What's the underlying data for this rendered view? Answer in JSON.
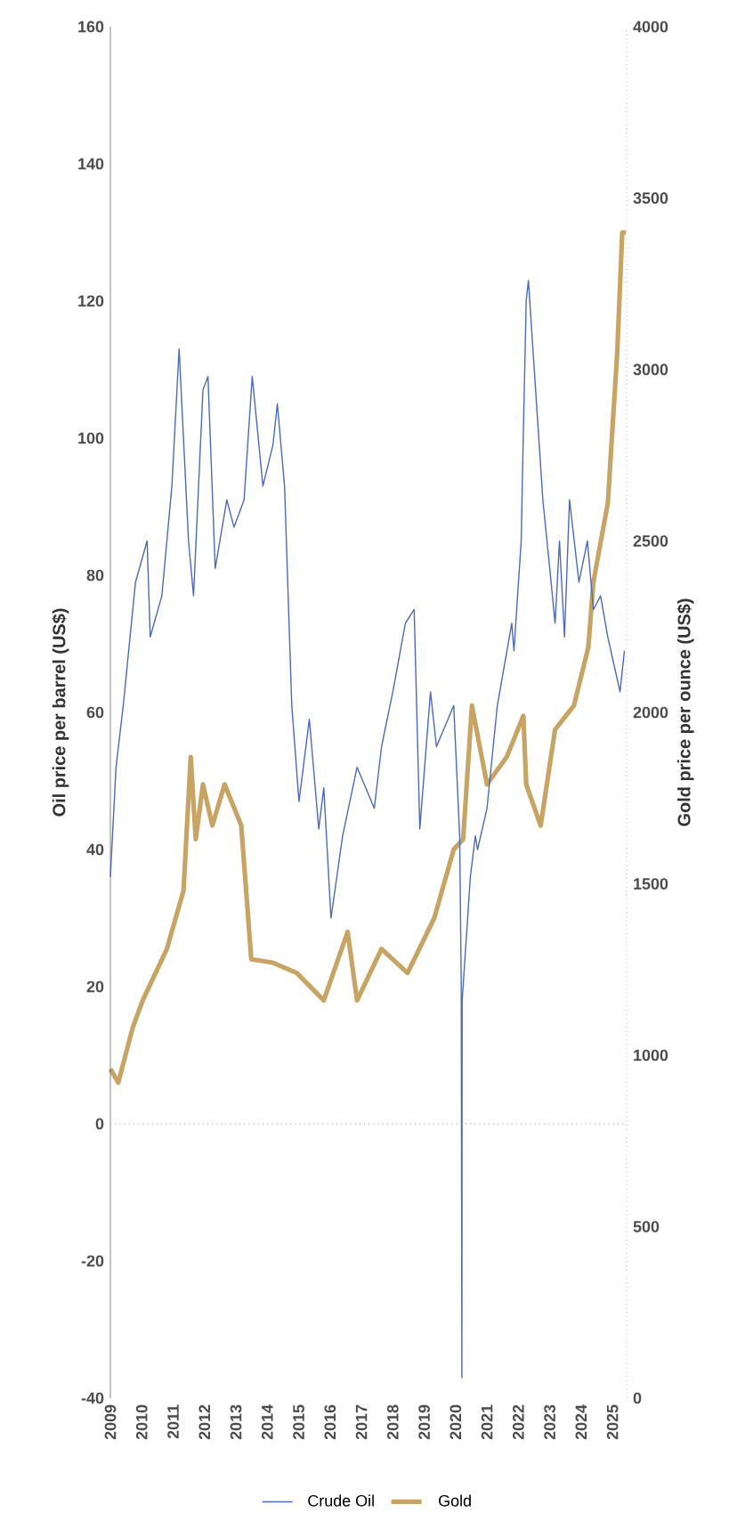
{
  "chart_data": {
    "type": "line",
    "ylabel": "Oil price per barrel (US$)",
    "y2label": "Gold price per ounce (US$)",
    "xlim": [
      2009,
      2025.45
    ],
    "xticks": [
      2009,
      2010,
      2011,
      2012,
      2013,
      2014,
      2015,
      2016,
      2017,
      2018,
      2019,
      2020,
      2021,
      2022,
      2023,
      2024,
      2025
    ],
    "ylim": [
      -40,
      160
    ],
    "yticks": [
      -40,
      -20,
      0,
      20,
      40,
      60,
      80,
      100,
      120,
      140,
      160
    ],
    "y2lim": [
      0,
      4000
    ],
    "y2ticks": [
      0,
      500,
      1000,
      1500,
      2000,
      2500,
      3000,
      3500,
      4000
    ],
    "legend": "bottom",
    "grid": false,
    "marker": "none",
    "ref_lines": [
      {
        "axis": "y",
        "value": 0,
        "color": "#a0a0a0",
        "line_style": "dotted"
      }
    ],
    "series": [
      {
        "name": "Crude Oil",
        "color": "#4a6bb5",
        "x": [
          2009.0,
          2009.18,
          2009.41,
          2009.8,
          2010.17,
          2010.27,
          2010.64,
          2010.96,
          2011.19,
          2011.49,
          2011.65,
          2011.95,
          2012.11,
          2012.34,
          2012.71,
          2012.94,
          2013.26,
          2013.52,
          2013.86,
          2014.18,
          2014.32,
          2014.55,
          2014.78,
          2015.01,
          2015.34,
          2015.64,
          2015.8,
          2016.03,
          2016.4,
          2016.86,
          2017.41,
          2017.64,
          2018.0,
          2018.4,
          2018.68,
          2018.86,
          2019.2,
          2019.39,
          2019.94,
          2020.13,
          2020.18,
          2020.2,
          2020.21,
          2020.47,
          2020.63,
          2020.7,
          2021.0,
          2021.33,
          2021.79,
          2021.86,
          2022.09,
          2022.16,
          2022.25,
          2022.32,
          2022.55,
          2022.78,
          2023.0,
          2023.17,
          2023.31,
          2023.47,
          2023.63,
          2023.93,
          2024.2,
          2024.39,
          2024.62,
          2024.85,
          2025.24,
          2025.38
        ],
        "values": [
          36,
          52,
          61,
          79,
          85,
          71,
          77,
          93,
          113,
          85,
          77,
          107,
          109,
          81,
          91,
          87,
          91,
          109,
          93,
          99,
          105,
          93,
          61,
          47,
          59,
          43,
          49,
          30,
          42,
          52,
          46,
          55,
          63,
          73,
          75,
          43,
          63,
          55,
          61,
          42,
          20,
          -37,
          18,
          36,
          42,
          40,
          46,
          61,
          73,
          69,
          85,
          101,
          120,
          123,
          107,
          91,
          81,
          73,
          85,
          71,
          91,
          79,
          85,
          75,
          77,
          71,
          63,
          69
        ]
      },
      {
        "name": "Gold",
        "color": "#c8a464",
        "axis": "y2",
        "x": [
          2009.0,
          2009.25,
          2009.71,
          2010.03,
          2010.8,
          2011.33,
          2011.56,
          2011.72,
          2011.95,
          2012.25,
          2012.64,
          2013.17,
          2013.49,
          2014.18,
          2014.94,
          2015.8,
          2016.56,
          2016.86,
          2017.64,
          2018.47,
          2019.32,
          2019.94,
          2020.24,
          2020.52,
          2021.0,
          2021.63,
          2022.16,
          2022.25,
          2022.71,
          2023.17,
          2023.77,
          2024.23,
          2024.39,
          2024.85,
          2025.15,
          2025.31,
          2025.43
        ],
        "values": [
          960,
          920,
          1080,
          1160,
          1310,
          1480,
          1870,
          1630,
          1790,
          1670,
          1790,
          1670,
          1280,
          1270,
          1240,
          1160,
          1360,
          1160,
          1310,
          1240,
          1400,
          1600,
          1630,
          2020,
          1790,
          1870,
          1990,
          1790,
          1670,
          1950,
          2020,
          2190,
          2380,
          2610,
          3050,
          3400,
          3400
        ]
      }
    ]
  }
}
